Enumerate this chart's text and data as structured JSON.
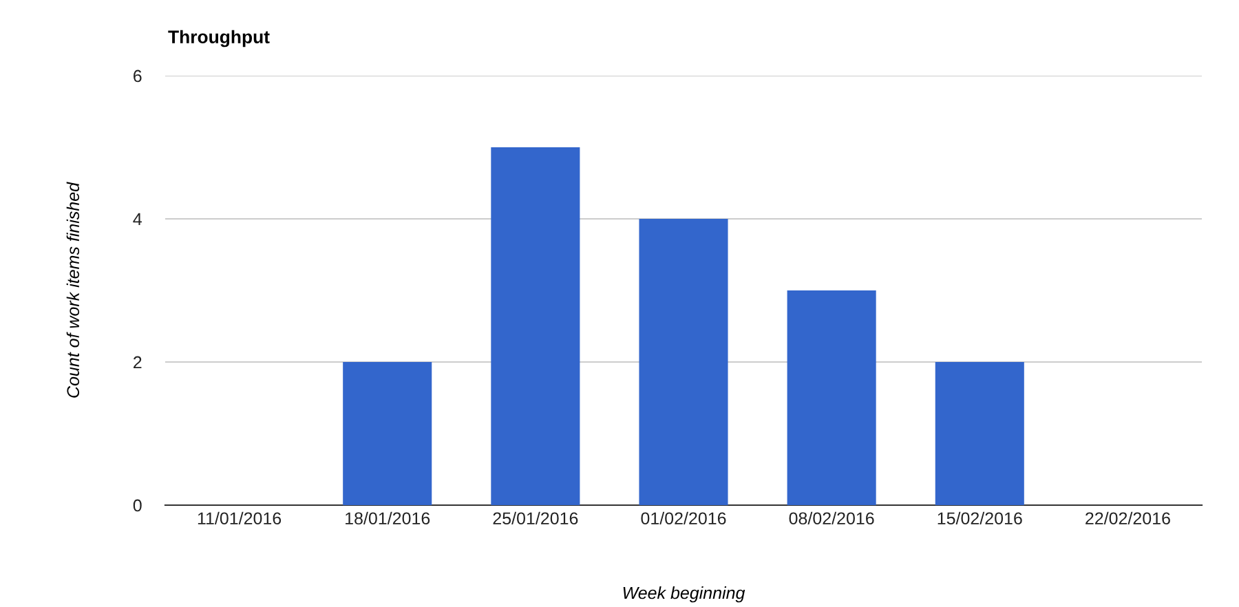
{
  "chart_data": {
    "type": "bar",
    "title": "Throughput",
    "xlabel": "Week beginning",
    "ylabel": "Count of work items finished",
    "categories": [
      "11/01/2016",
      "18/01/2016",
      "25/01/2016",
      "01/02/2016",
      "08/02/2016",
      "15/02/2016",
      "22/02/2016"
    ],
    "values": [
      0,
      2,
      5,
      4,
      3,
      2,
      0
    ],
    "color": "#3366cc",
    "ylim": [
      0,
      6
    ],
    "yticks": [
      0,
      2,
      4,
      6
    ],
    "grid": "y",
    "legend": false
  }
}
